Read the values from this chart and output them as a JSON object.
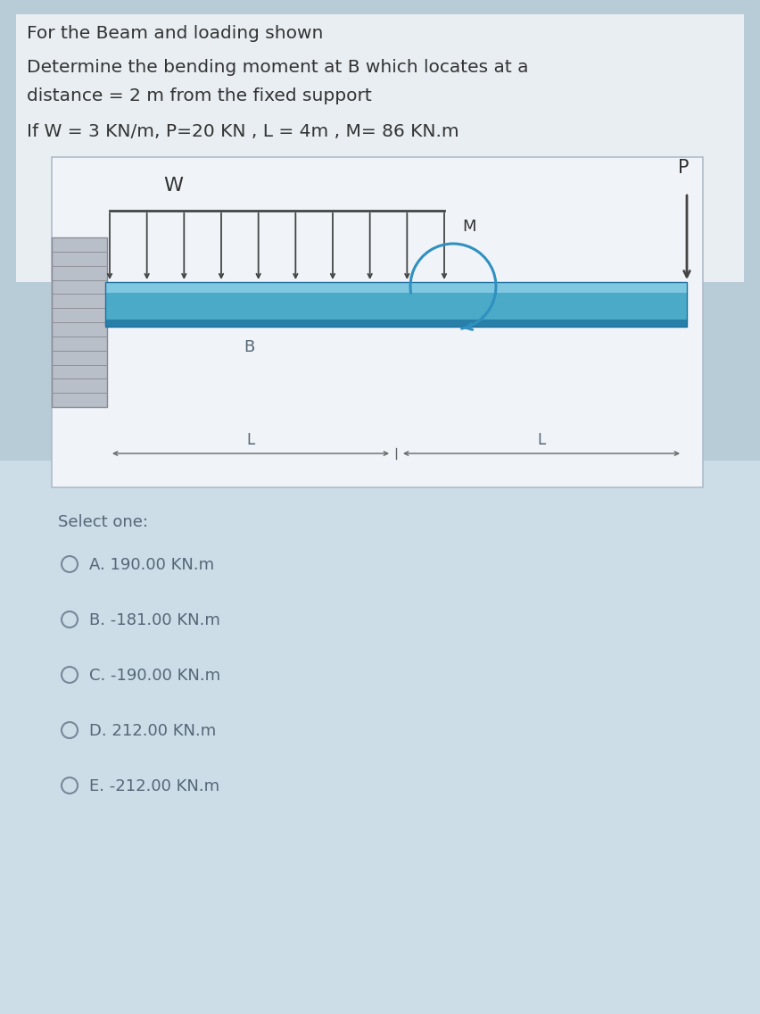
{
  "title_line1": "For the Beam and loading shown",
  "title_line2": "Determine the bending moment at B which locates at a",
  "title_line3": "distance = 2 m from the fixed support",
  "title_line4": "If W = 3 KN/m, P=20 KN , L = 4m , M= 86 KN.m",
  "bg_outer": "#b8ccd8",
  "bg_inner": "#dce8f0",
  "diagram_bg": "#f0f4f8",
  "beam_color_top": "#90cce0",
  "beam_color_mid": "#5ab0d0",
  "beam_color_bot": "#3090b8",
  "wall_color": "#a0a8b0",
  "wall_hatch": "#808890",
  "text_dark": "#333333",
  "text_mid": "#556677",
  "text_light": "#778899",
  "arrow_load": "#444444",
  "arrow_moment": "#3090c0",
  "dim_line": "#666666",
  "select_one": "Select one:",
  "options": [
    "A. 190.00 KN.m",
    "B. -181.00 KN.m",
    "C. -190.00 KN.m",
    "D. 212.00 KN.m",
    "E. -212.00 KN.m"
  ]
}
